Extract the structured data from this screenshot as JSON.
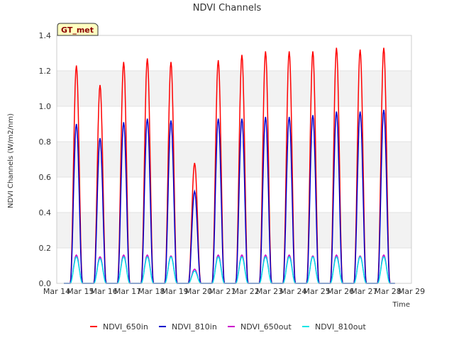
{
  "chart_data": {
    "type": "line",
    "title": "NDVI Channels",
    "xlabel": "Time",
    "ylabel": "NDVI Channels (W/m2/nm)",
    "ylim": [
      0.0,
      1.4
    ],
    "yticks": [
      0.0,
      0.2,
      0.4,
      0.6,
      0.8,
      1.0,
      1.2,
      1.4
    ],
    "ytick_labels": [
      "0.0",
      "0.2",
      "0.4",
      "0.6",
      "0.8",
      "1.0",
      "1.2",
      "1.4"
    ],
    "xlim": [
      0,
      15
    ],
    "xtick_labels": [
      "Mar 14",
      "Mar 15",
      "Mar 16",
      "Mar 17",
      "Mar 18",
      "Mar 19",
      "Mar 20",
      "Mar 21",
      "Mar 22",
      "Mar 23",
      "Mar 24",
      "Mar 25",
      "Mar 26",
      "Mar 27",
      "Mar 28",
      "Mar 29"
    ],
    "badge": "GT_met",
    "grid": "horizontal alternating bands",
    "legend_position": "bottom",
    "daily_peak_position_days": [
      0.83,
      1.83,
      2.83,
      3.83,
      4.83,
      5.83,
      6.83,
      7.83,
      8.83,
      9.83,
      10.83,
      11.83,
      12.83,
      13.83
    ],
    "series": [
      {
        "name": "NDVI_650in",
        "color": "#ff0000",
        "daily_peaks": [
          1.23,
          1.12,
          1.25,
          1.27,
          1.25,
          0.68,
          1.26,
          1.29,
          1.31,
          1.31,
          1.31,
          1.33,
          1.32,
          1.33
        ]
      },
      {
        "name": "NDVI_810in",
        "color": "#0000cc",
        "daily_peaks": [
          0.9,
          0.82,
          0.91,
          0.93,
          0.92,
          0.52,
          0.93,
          0.93,
          0.94,
          0.94,
          0.95,
          0.97,
          0.97,
          0.98
        ]
      },
      {
        "name": "NDVI_650out",
        "color": "#cc00cc",
        "daily_peaks": [
          0.16,
          0.15,
          0.16,
          0.16,
          0.155,
          0.08,
          0.16,
          0.16,
          0.16,
          0.16,
          0.155,
          0.16,
          0.155,
          0.16
        ]
      },
      {
        "name": "NDVI_810out",
        "color": "#00e5e5",
        "daily_peaks": [
          0.15,
          0.14,
          0.15,
          0.15,
          0.15,
          0.07,
          0.15,
          0.15,
          0.15,
          0.15,
          0.15,
          0.15,
          0.15,
          0.15
        ]
      }
    ]
  }
}
